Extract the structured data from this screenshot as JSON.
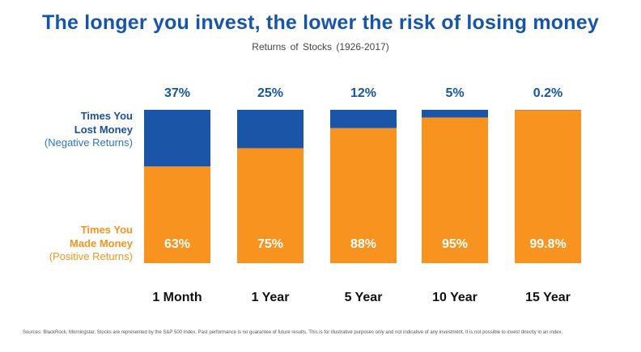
{
  "title": "The longer you invest, the lower the risk of losing money",
  "subtitle": "Returns of Stocks (1926-2017)",
  "labels": {
    "lost_line1": "Times You",
    "lost_line2": "Lost Money",
    "lost_sub": "(Negative Returns)",
    "made_line1": "Times You",
    "made_line2": "Made Money",
    "made_sub": "(Positive Returns)"
  },
  "colors": {
    "negative": "#1a55a8",
    "positive": "#f7931e",
    "title": "#1556a8"
  },
  "footnote": "Sources: BlackRock, Morningstar. Stocks are represented by the S&P 500 Index. Past performance is no guarantee of future results. This is for illustrative purposes only and not indicative of any investment. It is not possible to invest directly in an index.",
  "chart_data": {
    "type": "bar",
    "stacked": true,
    "normalized_to": 100,
    "categories": [
      "1 Month",
      "1 Year",
      "5 Year",
      "10 Year",
      "15 Year"
    ],
    "series": [
      {
        "name": "Times You Lost Money (Negative Returns)",
        "values": [
          37,
          25,
          12,
          5,
          0.2
        ],
        "labels": [
          "37%",
          "25%",
          "12%",
          "5%",
          "0.2%"
        ]
      },
      {
        "name": "Times You Made Money (Positive Returns)",
        "values": [
          63,
          75,
          88,
          95,
          99.8
        ],
        "labels": [
          "63%",
          "75%",
          "88%",
          "95%",
          "99.8%"
        ]
      }
    ],
    "title": "The longer you invest, the lower the risk of losing money",
    "subtitle": "Returns of Stocks (1926-2017)",
    "ylim": [
      0,
      100
    ],
    "grid": false,
    "legend": "left"
  }
}
